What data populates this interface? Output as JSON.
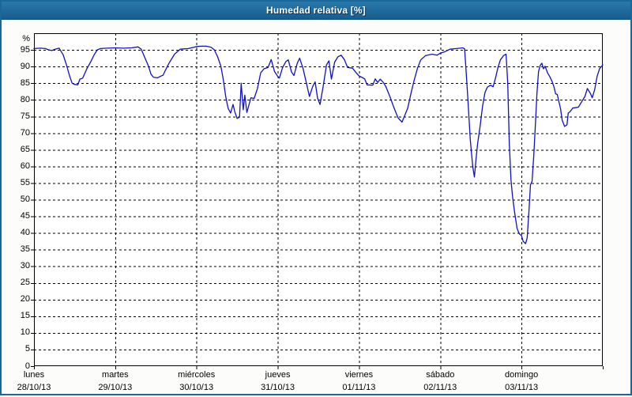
{
  "window": {
    "title": "Humedad relativa [%]"
  },
  "colors": {
    "frame_border": "#19689b",
    "titlebar_top": "#2b79a9",
    "titlebar_bottom": "#155e8e",
    "title_text": "#ffffff",
    "panel_background": "#fcfdfa",
    "plot_background": "#ffffff",
    "grid": "#000000",
    "axis_text": "#000000",
    "line": "#1111c4"
  },
  "chart_data": {
    "type": "line",
    "title": "Humedad relativa [%]",
    "y_unit": "%",
    "ylim": [
      0,
      100
    ],
    "y_ticks": [
      0,
      5,
      10,
      15,
      20,
      25,
      30,
      35,
      40,
      45,
      50,
      55,
      60,
      65,
      70,
      75,
      80,
      85,
      90,
      95
    ],
    "grid": "dashed",
    "legend_position": "none",
    "x_days": [
      {
        "name": "lunes",
        "date": "28/10/13"
      },
      {
        "name": "martes",
        "date": "29/10/13"
      },
      {
        "name": "miércoles",
        "date": "30/10/13"
      },
      {
        "name": "jueves",
        "date": "31/10/13"
      },
      {
        "name": "viernes",
        "date": "01/11/13"
      },
      {
        "name": "sábado",
        "date": "02/11/13"
      },
      {
        "name": "domingo",
        "date": "03/11/13"
      }
    ],
    "series": [
      {
        "name": "Humedad relativa",
        "color": "#1111c4",
        "points": [
          [
            0.0,
            95.4
          ],
          [
            0.08,
            95.5
          ],
          [
            0.14,
            95.4
          ],
          [
            0.18,
            95.0
          ],
          [
            0.22,
            94.8
          ],
          [
            0.26,
            95.2
          ],
          [
            0.31,
            95.5
          ],
          [
            0.36,
            93.5
          ],
          [
            0.4,
            90.5
          ],
          [
            0.44,
            87.0
          ],
          [
            0.47,
            85.0
          ],
          [
            0.5,
            84.6
          ],
          [
            0.54,
            84.5
          ],
          [
            0.565,
            86.2
          ],
          [
            0.6,
            86.5
          ],
          [
            0.65,
            89.3
          ],
          [
            0.7,
            91.5
          ],
          [
            0.74,
            93.5
          ],
          [
            0.78,
            95.0
          ],
          [
            0.82,
            95.4
          ],
          [
            0.9,
            95.5
          ],
          [
            1.0,
            95.6
          ],
          [
            1.1,
            95.5
          ],
          [
            1.2,
            95.6
          ],
          [
            1.28,
            95.9
          ],
          [
            1.32,
            95.2
          ],
          [
            1.36,
            92.9
          ],
          [
            1.41,
            90.1
          ],
          [
            1.44,
            87.7
          ],
          [
            1.47,
            86.8
          ],
          [
            1.52,
            86.6
          ],
          [
            1.56,
            87.1
          ],
          [
            1.59,
            87.4
          ],
          [
            1.61,
            88.5
          ],
          [
            1.66,
            90.9
          ],
          [
            1.73,
            93.7
          ],
          [
            1.8,
            95.2
          ],
          [
            1.9,
            95.4
          ],
          [
            1.97,
            95.8
          ],
          [
            2.0,
            96.0
          ],
          [
            2.06,
            96.1
          ],
          [
            2.12,
            96.1
          ],
          [
            2.18,
            95.8
          ],
          [
            2.22,
            95.0
          ],
          [
            2.26,
            92.9
          ],
          [
            2.3,
            90.1
          ],
          [
            2.33,
            86.0
          ],
          [
            2.36,
            81.0
          ],
          [
            2.39,
            77.4
          ],
          [
            2.42,
            76.0
          ],
          [
            2.45,
            78.6
          ],
          [
            2.47,
            76.5
          ],
          [
            2.5,
            74.4
          ],
          [
            2.53,
            74.8
          ],
          [
            2.55,
            85.0
          ],
          [
            2.575,
            77.0
          ],
          [
            2.595,
            81.4
          ],
          [
            2.62,
            76.2
          ],
          [
            2.67,
            80.6
          ],
          [
            2.71,
            80.4
          ],
          [
            2.75,
            83.4
          ],
          [
            2.79,
            88.1
          ],
          [
            2.83,
            89.3
          ],
          [
            2.88,
            89.7
          ],
          [
            2.92,
            92.1
          ],
          [
            2.96,
            88.5
          ],
          [
            3.0,
            87.0
          ],
          [
            3.02,
            86.5
          ],
          [
            3.06,
            89.7
          ],
          [
            3.1,
            91.5
          ],
          [
            3.13,
            92.0
          ],
          [
            3.17,
            88.3
          ],
          [
            3.2,
            87.3
          ],
          [
            3.24,
            91.0
          ],
          [
            3.27,
            92.5
          ],
          [
            3.31,
            89.5
          ],
          [
            3.35,
            85.3
          ],
          [
            3.39,
            81.0
          ],
          [
            3.43,
            84.0
          ],
          [
            3.46,
            85.4
          ],
          [
            3.49,
            80.5
          ],
          [
            3.52,
            78.6
          ],
          [
            3.56,
            84.2
          ],
          [
            3.6,
            90.5
          ],
          [
            3.63,
            91.7
          ],
          [
            3.66,
            86.2
          ],
          [
            3.7,
            91.3
          ],
          [
            3.74,
            92.9
          ],
          [
            3.78,
            93.4
          ],
          [
            3.82,
            92.1
          ],
          [
            3.86,
            89.7
          ],
          [
            3.92,
            89.5
          ],
          [
            3.97,
            88.0
          ],
          [
            4.0,
            87.2
          ],
          [
            4.04,
            86.7
          ],
          [
            4.07,
            86.3
          ],
          [
            4.1,
            84.5
          ],
          [
            4.17,
            84.4
          ],
          [
            4.2,
            86.3
          ],
          [
            4.23,
            85.2
          ],
          [
            4.26,
            86.2
          ],
          [
            4.3,
            85.2
          ],
          [
            4.33,
            84.0
          ],
          [
            4.38,
            81.0
          ],
          [
            4.43,
            77.6
          ],
          [
            4.48,
            74.6
          ],
          [
            4.53,
            73.3
          ],
          [
            4.6,
            77.5
          ],
          [
            4.64,
            82.0
          ],
          [
            4.68,
            86.0
          ],
          [
            4.72,
            89.5
          ],
          [
            4.76,
            92.0
          ],
          [
            4.82,
            93.3
          ],
          [
            4.9,
            93.7
          ],
          [
            4.96,
            93.4
          ],
          [
            5.0,
            94.0
          ],
          [
            5.06,
            94.5
          ],
          [
            5.12,
            95.2
          ],
          [
            5.2,
            95.4
          ],
          [
            5.28,
            95.6
          ],
          [
            5.3,
            95.3
          ],
          [
            5.32,
            88.0
          ],
          [
            5.34,
            80.0
          ],
          [
            5.37,
            68.0
          ],
          [
            5.4,
            60.0
          ],
          [
            5.42,
            56.8
          ],
          [
            5.44,
            62.0
          ],
          [
            5.46,
            66.9
          ],
          [
            5.49,
            72.0
          ],
          [
            5.52,
            78.0
          ],
          [
            5.55,
            82.2
          ],
          [
            5.58,
            83.8
          ],
          [
            5.62,
            84.4
          ],
          [
            5.65,
            83.9
          ],
          [
            5.68,
            86.5
          ],
          [
            5.71,
            89.7
          ],
          [
            5.74,
            92.0
          ],
          [
            5.78,
            93.3
          ],
          [
            5.81,
            93.7
          ],
          [
            5.83,
            85.0
          ],
          [
            5.85,
            66.7
          ],
          [
            5.87,
            56.0
          ],
          [
            5.89,
            50.9
          ],
          [
            5.915,
            46.2
          ],
          [
            5.945,
            41.4
          ],
          [
            5.97,
            39.8
          ],
          [
            6.0,
            39.2
          ],
          [
            6.02,
            37.5
          ],
          [
            6.05,
            36.8
          ],
          [
            6.07,
            38.5
          ],
          [
            6.09,
            46.0
          ],
          [
            6.11,
            54.5
          ],
          [
            6.13,
            55.5
          ],
          [
            6.15,
            63.0
          ],
          [
            6.17,
            72.0
          ],
          [
            6.19,
            82.0
          ],
          [
            6.21,
            88.5
          ],
          [
            6.23,
            90.3
          ],
          [
            6.25,
            91.0
          ],
          [
            6.27,
            89.3
          ],
          [
            6.29,
            90.1
          ],
          [
            6.32,
            88.1
          ],
          [
            6.35,
            86.9
          ],
          [
            6.38,
            85.3
          ],
          [
            6.4,
            83.8
          ],
          [
            6.42,
            81.8
          ],
          [
            6.44,
            81.6
          ],
          [
            6.46,
            79.4
          ],
          [
            6.48,
            77.4
          ],
          [
            6.5,
            73.9
          ],
          [
            6.53,
            72.0
          ],
          [
            6.56,
            72.5
          ],
          [
            6.575,
            76.0
          ],
          [
            6.6,
            76.5
          ],
          [
            6.63,
            77.5
          ],
          [
            6.7,
            77.8
          ],
          [
            6.74,
            79.4
          ],
          [
            6.78,
            81.0
          ],
          [
            6.81,
            83.4
          ],
          [
            6.85,
            81.8
          ],
          [
            6.87,
            80.6
          ],
          [
            6.9,
            83.0
          ],
          [
            6.93,
            87.0
          ],
          [
            6.96,
            89.3
          ],
          [
            7.0,
            90.5
          ]
        ]
      }
    ]
  }
}
